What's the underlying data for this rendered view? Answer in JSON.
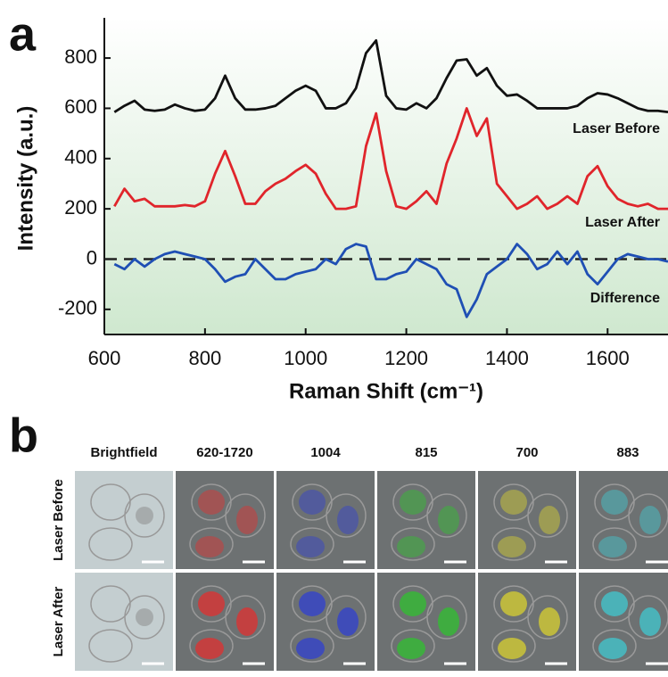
{
  "panel_labels": [
    "a",
    "b"
  ],
  "chart_data": {
    "type": "line",
    "x_label": "Raman Shift (cm⁻¹)",
    "y_label": "Intensity (a.u.)",
    "x": [
      620,
      640,
      660,
      680,
      700,
      720,
      740,
      760,
      780,
      800,
      820,
      840,
      860,
      880,
      900,
      920,
      940,
      960,
      980,
      1000,
      1020,
      1040,
      1060,
      1080,
      1100,
      1120,
      1140,
      1160,
      1180,
      1200,
      1220,
      1240,
      1260,
      1280,
      1300,
      1320,
      1340,
      1360,
      1380,
      1400,
      1420,
      1440,
      1460,
      1480,
      1500,
      1520,
      1540,
      1560,
      1580,
      1600,
      1620,
      1640,
      1660,
      1680,
      1700,
      1720
    ],
    "series": [
      {
        "name": "Laser Before",
        "color": "#111111",
        "values": [
          585,
          610,
          630,
          595,
          590,
          595,
          615,
          600,
          590,
          595,
          640,
          730,
          640,
          595,
          595,
          600,
          610,
          640,
          670,
          690,
          670,
          600,
          600,
          620,
          680,
          820,
          870,
          650,
          600,
          595,
          620,
          600,
          640,
          720,
          790,
          795,
          730,
          760,
          690,
          650,
          655,
          630,
          600,
          600,
          600,
          600,
          610,
          640,
          660,
          655,
          640,
          620,
          600,
          590,
          590,
          585
        ]
      },
      {
        "name": "Laser After",
        "color": "#e0252b",
        "values": [
          210,
          280,
          230,
          240,
          210,
          210,
          210,
          215,
          210,
          230,
          340,
          430,
          330,
          220,
          220,
          270,
          300,
          320,
          350,
          375,
          340,
          260,
          200,
          200,
          210,
          450,
          580,
          350,
          210,
          200,
          230,
          270,
          220,
          380,
          480,
          600,
          490,
          560,
          300,
          250,
          200,
          220,
          250,
          200,
          220,
          250,
          220,
          330,
          370,
          290,
          240,
          220,
          210,
          220,
          200,
          200
        ]
      },
      {
        "name": "Difference",
        "color": "#1f4fb4",
        "values": [
          -20,
          -40,
          0,
          -30,
          0,
          20,
          30,
          20,
          10,
          0,
          -40,
          -90,
          -70,
          -60,
          0,
          -40,
          -80,
          -80,
          -60,
          -50,
          -40,
          0,
          -20,
          40,
          60,
          50,
          -80,
          -80,
          -60,
          -50,
          0,
          -20,
          -40,
          -100,
          -120,
          -230,
          -160,
          -60,
          -30,
          0,
          60,
          20,
          -40,
          -20,
          30,
          -20,
          30,
          -60,
          -100,
          -50,
          0,
          20,
          10,
          0,
          0,
          -10
        ]
      }
    ],
    "xlim": [
      600,
      1720
    ],
    "ylim": [
      -300,
      960
    ],
    "xticks": [
      600,
      800,
      1000,
      1200,
      1400,
      1600
    ],
    "yticks": [
      -200,
      0,
      200,
      400,
      600,
      800
    ]
  },
  "panel_b": {
    "columns": [
      "Brightfield",
      "620-1720",
      "1004",
      "815",
      "700",
      "883"
    ],
    "rows": [
      "Laser Before",
      "Laser After"
    ]
  }
}
